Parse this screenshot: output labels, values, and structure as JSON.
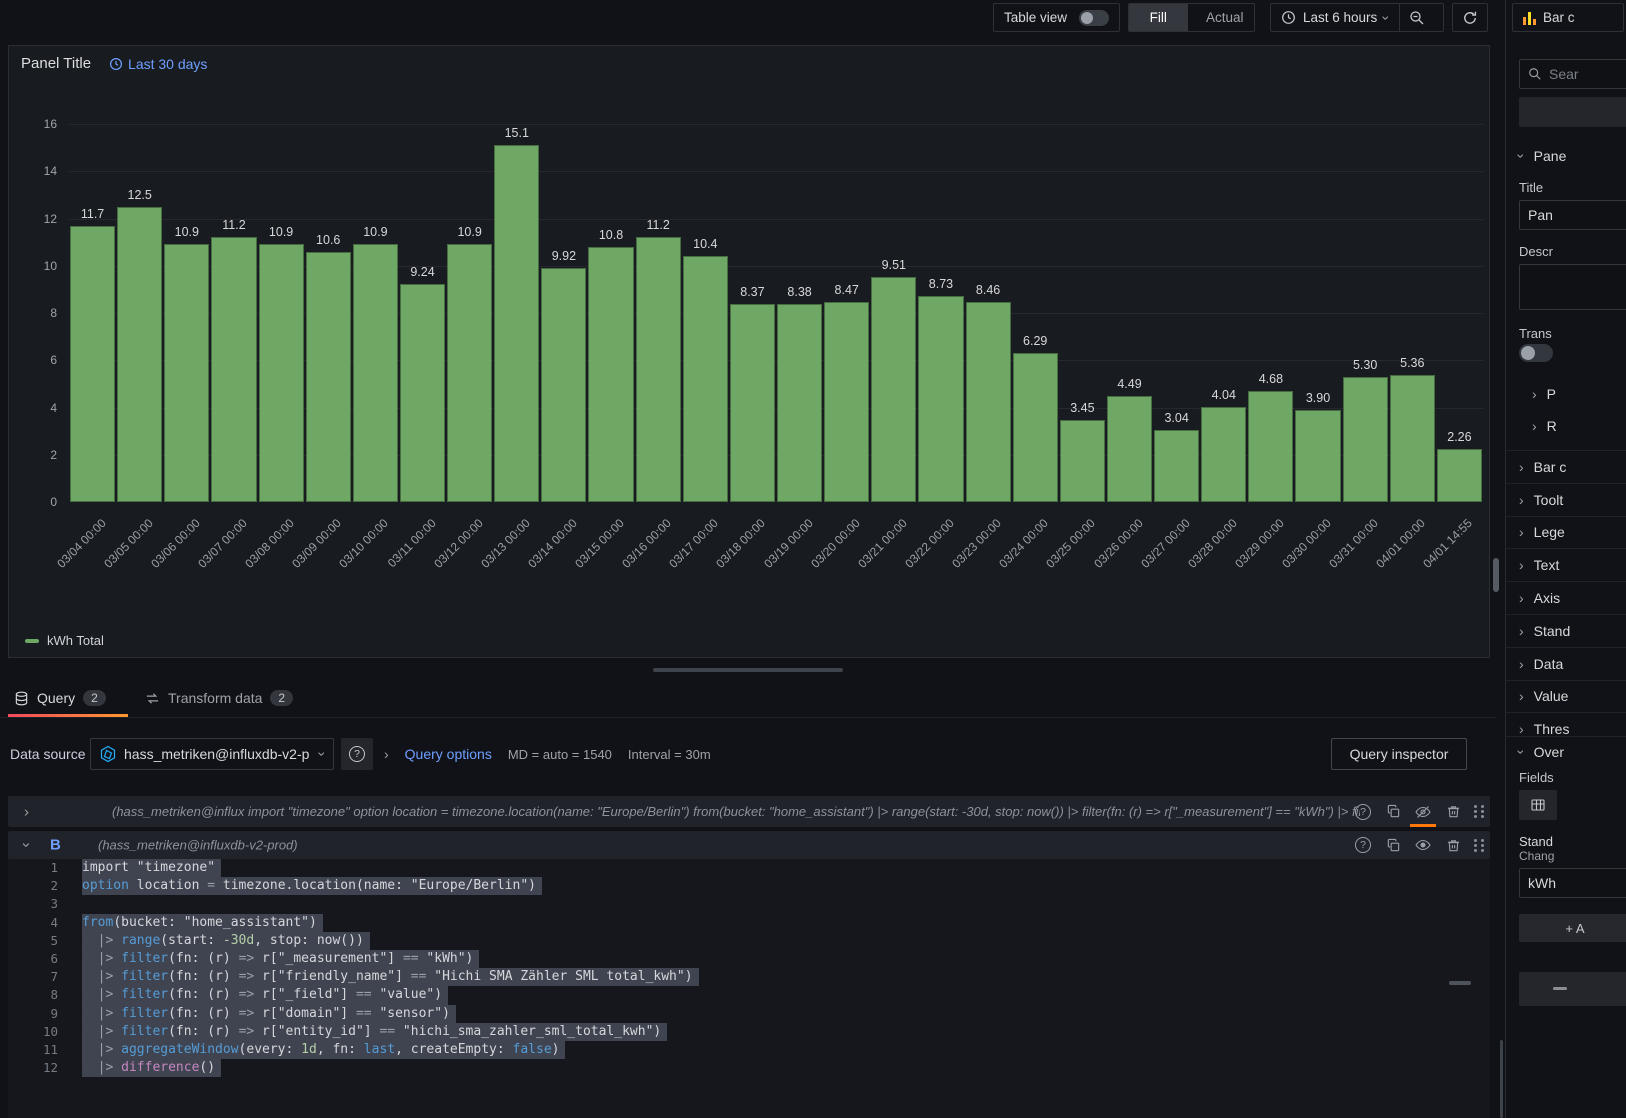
{
  "toolbar": {
    "table_view_label": "Table view",
    "fill_label": "Fill",
    "actual_label": "Actual",
    "time_range_label": "Last 6 hours"
  },
  "panel": {
    "title": "Panel Title",
    "time_override": "Last 30 days",
    "legend_label": "kWh Total"
  },
  "chart_data": {
    "type": "bar",
    "title": "Panel Title",
    "series_name": "kWh Total",
    "categories": [
      "03/04 00:00",
      "03/05 00:00",
      "03/06 00:00",
      "03/07 00:00",
      "03/08 00:00",
      "03/09 00:00",
      "03/10 00:00",
      "03/11 00:00",
      "03/12 00:00",
      "03/13 00:00",
      "03/14 00:00",
      "03/15 00:00",
      "03/16 00:00",
      "03/17 00:00",
      "03/18 00:00",
      "03/19 00:00",
      "03/20 00:00",
      "03/21 00:00",
      "03/22 00:00",
      "03/23 00:00",
      "03/24 00:00",
      "03/25 00:00",
      "03/26 00:00",
      "03/27 00:00",
      "03/28 00:00",
      "03/29 00:00",
      "03/30 00:00",
      "03/31 00:00",
      "04/01 00:00",
      "04/01 14:55"
    ],
    "values": [
      11.7,
      12.5,
      10.9,
      11.2,
      10.9,
      10.6,
      10.9,
      9.24,
      10.9,
      15.1,
      9.92,
      10.8,
      11.2,
      10.4,
      8.37,
      8.38,
      8.47,
      9.51,
      8.73,
      8.46,
      6.29,
      3.45,
      4.49,
      3.04,
      4.04,
      4.68,
      3.9,
      5.3,
      5.36,
      2.26
    ],
    "value_labels": [
      "11.7",
      "12.5",
      "10.9",
      "11.2",
      "10.9",
      "10.6",
      "10.9",
      "9.24",
      "10.9",
      "15.1",
      "9.92",
      "10.8",
      "11.2",
      "10.4",
      "8.37",
      "8.38",
      "8.47",
      "9.51",
      "8.73",
      "8.46",
      "6.29",
      "3.45",
      "4.49",
      "3.04",
      "4.04",
      "4.68",
      "3.90",
      "5.30",
      "5.36",
      "2.26"
    ],
    "xlabel": "",
    "ylabel": "",
    "ylim": [
      0,
      16
    ],
    "yticks": [
      0,
      2,
      4,
      6,
      8,
      10,
      12,
      14,
      16
    ],
    "grid": true,
    "legend_position": "bottom",
    "bar_color": "#6fa765"
  },
  "editor": {
    "tabs": {
      "query_label": "Query",
      "query_count": "2",
      "transform_label": "Transform data",
      "transform_count": "2"
    },
    "datasource": {
      "label": "Data source",
      "value": "hass_metriken@influxdb-v2-p",
      "query_options_label": "Query options",
      "md": "MD = auto = 1540",
      "interval": "Interval = 30m",
      "inspector_label": "Query inspector"
    },
    "query_a": {
      "summary": "(hass_metriken@influx  import \"timezone\" option location = timezone.location(name: \"Europe/Berlin\") from(bucket: \"home_assistant\") |> range(start: -30d, stop: now()) |> filter(fn: (r) => r[\"_measurement\"] == \"kWh\") |> filter(fn: ..."
    },
    "query_b": {
      "ref": "B",
      "datasource_name": "(hass_metriken@influxdb-v2-prod)",
      "lines": [
        {
          "sel": true,
          "t": [
            [
              "pl",
              "import \"timezone\""
            ]
          ]
        },
        {
          "sel": true,
          "t": [
            [
              "k",
              "option"
            ],
            [
              "pl",
              " location "
            ],
            [
              "op",
              "="
            ],
            [
              "pl",
              " timezone.location(name: \"Europe/Berlin\")"
            ]
          ]
        },
        {
          "sel": false,
          "t": []
        },
        {
          "sel": true,
          "t": [
            [
              "k",
              "from"
            ],
            [
              "pl",
              "(bucket: \"home_assistant\")"
            ]
          ]
        },
        {
          "sel": true,
          "t": [
            [
              "ws",
              "··"
            ],
            [
              "op",
              "|>"
            ],
            [
              "pl",
              " "
            ],
            [
              "k",
              "range"
            ],
            [
              "pl",
              "(start: "
            ],
            [
              "num",
              "-30d"
            ],
            [
              "pl",
              ", stop: now())"
            ]
          ]
        },
        {
          "sel": true,
          "t": [
            [
              "ws",
              "··"
            ],
            [
              "op",
              "|>"
            ],
            [
              "pl",
              " "
            ],
            [
              "k",
              "filter"
            ],
            [
              "pl",
              "(fn: (r) "
            ],
            [
              "op",
              "=>"
            ],
            [
              "pl",
              " r[\"_measurement\"] "
            ],
            [
              "op",
              "=="
            ],
            [
              "pl",
              " \"kWh\")"
            ]
          ]
        },
        {
          "sel": true,
          "t": [
            [
              "ws",
              "··"
            ],
            [
              "op",
              "|>"
            ],
            [
              "pl",
              " "
            ],
            [
              "k",
              "filter"
            ],
            [
              "pl",
              "(fn: (r) "
            ],
            [
              "op",
              "=>"
            ],
            [
              "pl",
              " r[\"friendly_name\"] "
            ],
            [
              "op",
              "=="
            ],
            [
              "pl",
              " \"Hichi SMA Zähler SML total_kwh\")"
            ]
          ]
        },
        {
          "sel": true,
          "t": [
            [
              "ws",
              "··"
            ],
            [
              "op",
              "|>"
            ],
            [
              "pl",
              " "
            ],
            [
              "k",
              "filter"
            ],
            [
              "pl",
              "(fn: (r) "
            ],
            [
              "op",
              "=>"
            ],
            [
              "pl",
              " r[\"_field\"] "
            ],
            [
              "op",
              "=="
            ],
            [
              "pl",
              " \"value\")"
            ]
          ]
        },
        {
          "sel": true,
          "t": [
            [
              "ws",
              "··"
            ],
            [
              "op",
              "|>"
            ],
            [
              "pl",
              " "
            ],
            [
              "k",
              "filter"
            ],
            [
              "pl",
              "(fn: (r) "
            ],
            [
              "op",
              "=>"
            ],
            [
              "pl",
              " r[\"domain\"] "
            ],
            [
              "op",
              "=="
            ],
            [
              "pl",
              " \"sensor\")"
            ]
          ]
        },
        {
          "sel": true,
          "t": [
            [
              "ws",
              "··"
            ],
            [
              "op",
              "|>"
            ],
            [
              "pl",
              " "
            ],
            [
              "k",
              "filter"
            ],
            [
              "pl",
              "(fn: (r) "
            ],
            [
              "op",
              "=>"
            ],
            [
              "pl",
              " r[\"entity_id\"] "
            ],
            [
              "op",
              "=="
            ],
            [
              "pl",
              " \"hichi_sma_zahler_sml_total_kwh\")"
            ]
          ]
        },
        {
          "sel": true,
          "t": [
            [
              "ws",
              "··"
            ],
            [
              "op",
              "|>"
            ],
            [
              "pl",
              " "
            ],
            [
              "k",
              "aggregateWindow"
            ],
            [
              "pl",
              "(every: "
            ],
            [
              "num",
              "1d"
            ],
            [
              "pl",
              ", fn: "
            ],
            [
              "k",
              "last"
            ],
            [
              "pl",
              ", createEmpty: "
            ],
            [
              "k",
              "false"
            ],
            [
              "pl",
              ")"
            ]
          ]
        },
        {
          "sel": true,
          "t": [
            [
              "ws",
              "··"
            ],
            [
              "op",
              "|>"
            ],
            [
              "pl",
              " "
            ],
            [
              "m",
              "difference"
            ],
            [
              "pl",
              "()"
            ]
          ]
        }
      ]
    }
  },
  "sidebar": {
    "viz_button_label": "Bar c",
    "search_placeholder": "Sear",
    "panel_section_label": "Pane",
    "title_label": "Title",
    "title_value": "Pan",
    "description_label": "Descr",
    "transparent_label": "Trans",
    "link_rows": [
      "P",
      "R"
    ],
    "sections": [
      "Bar c",
      "Toolt",
      "Lege",
      "Text",
      "Axis",
      "Stand",
      "Data",
      "Value",
      "Thres"
    ],
    "overrides_label": "Over",
    "fields_label": "Fields",
    "standard_label": "Stand",
    "change_label": "Chang",
    "override_value": "kWh",
    "add_button_label": "+ A"
  },
  "icons": {
    "help_glyph": "?",
    "chevron": "›"
  },
  "colors": {
    "accent_orange": "#ff780a",
    "link_blue": "#6e9fff",
    "bar_green": "#6fa765",
    "influx_blue": "#22ADF6"
  }
}
